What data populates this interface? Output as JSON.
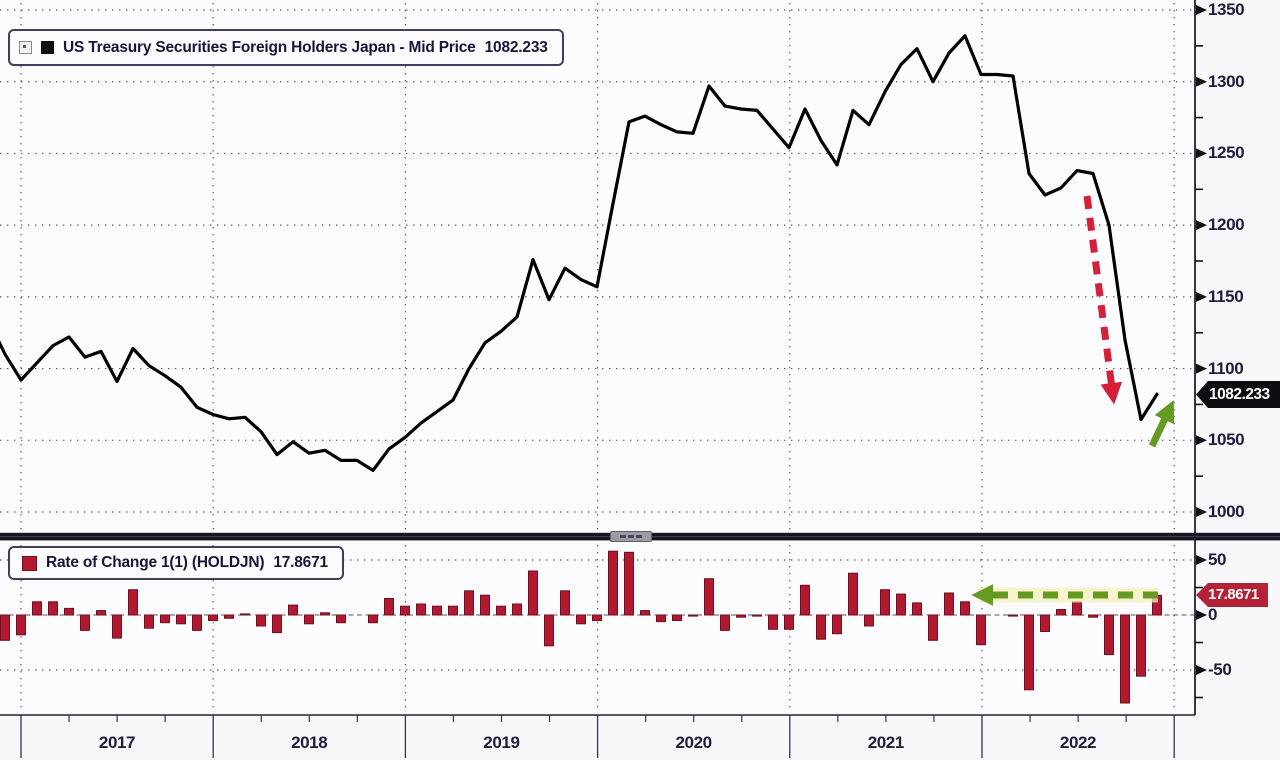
{
  "top_panel": {
    "legend": {
      "series_label": "US Treasury Securities Foreign Holders Japan - Mid Price",
      "value": "1082.233"
    },
    "y_ticks": [
      1350,
      1300,
      1250,
      1200,
      1150,
      1100,
      1050,
      1000
    ],
    "y_minor_ticks": [
      1325,
      1275,
      1225,
      1175,
      1125,
      1075,
      1025
    ],
    "badge_value": "1082.233"
  },
  "bottom_panel": {
    "legend": {
      "series_label": "Rate of Change 1(1) (HOLDJN)",
      "value": "17.8671"
    },
    "y_ticks": [
      50,
      0,
      -50
    ],
    "y_minor_ticks": [
      25,
      -25,
      -75
    ],
    "badge_value": "17.8671"
  },
  "x_axis": {
    "year_labels": [
      "2017",
      "2018",
      "2019",
      "2020",
      "2021",
      "2022"
    ]
  },
  "colors": {
    "line": "#000000",
    "bar_fill": "#b2182e",
    "bar_border": "#701020",
    "accent_red": "#d6203a",
    "accent_green": "#669b22",
    "green_halo": "#f5f2c0",
    "grid": "#43435f",
    "axis": "#222233",
    "text": "#1d1d3c",
    "badge_black": "#0c0c13",
    "badge_red": "#b52136"
  },
  "chart_data": {
    "type": "line",
    "title": "US Treasury Securities Foreign Holders Japan - Mid Price",
    "frequency": "monthly",
    "start_month": "2016-11",
    "end_month": "2022-12",
    "last_value": 1082.233,
    "values": [
      1133,
      1110,
      1092,
      1104,
      1116,
      1122,
      1108,
      1112,
      1091,
      1114,
      1102,
      1095,
      1087,
      1073,
      1068,
      1065,
      1066,
      1056,
      1040,
      1049,
      1041,
      1043,
      1036,
      1036,
      1029,
      1044,
      1052,
      1062,
      1070,
      1078,
      1100,
      1118,
      1126,
      1136,
      1176,
      1148,
      1170,
      1162,
      1157,
      1215,
      1272,
      1276,
      1270,
      1265,
      1264,
      1297,
      1283,
      1281,
      1280,
      1267,
      1254,
      1281,
      1259,
      1242,
      1280,
      1270,
      1293,
      1312,
      1323,
      1300,
      1320,
      1332,
      1305,
      1305,
      1304,
      1236,
      1221,
      1226,
      1238,
      1236,
      1200,
      1120,
      1064.4,
      1082.233
    ],
    "y_axis": {
      "ticks": [
        1000,
        1050,
        1100,
        1150,
        1200,
        1250,
        1300,
        1350
      ]
    },
    "x_years": [
      2017,
      2018,
      2019,
      2020,
      2021,
      2022
    ],
    "sub_chart": {
      "type": "bar",
      "title": "Rate of Change 1(1) (HOLDJN)",
      "definition": "1-period (month-over-month) change of the main series",
      "last_value": 17.8671,
      "y_ticks": [
        -50,
        0,
        50
      ]
    },
    "annotations": [
      {
        "name": "red-down-arrow",
        "panel": "top",
        "style": "dashed",
        "meaning": "sharp decline in 2022"
      },
      {
        "name": "green-up-arrow",
        "panel": "top",
        "style": "solid",
        "meaning": "final uptick to 1082.233"
      },
      {
        "name": "green-left-arrow",
        "panel": "bottom",
        "style": "dashed",
        "meaning": "points to latest positive change"
      }
    ]
  }
}
